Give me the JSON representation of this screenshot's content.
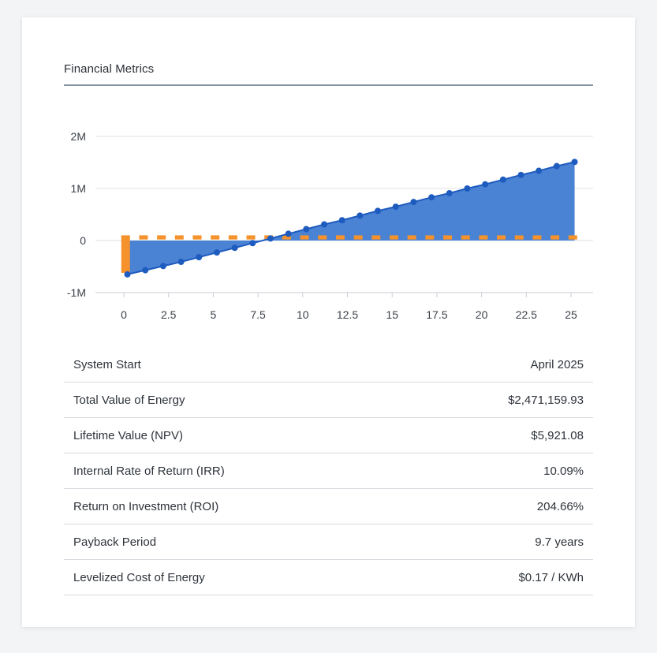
{
  "section": {
    "title": "Financial Metrics"
  },
  "colors": {
    "area_fill": "#4a82d4",
    "line": "#1d5bbf",
    "bar": "#f5922b",
    "grid": "#dde1e6"
  },
  "chart_data": {
    "type": "area",
    "title": "",
    "xlabel": "",
    "ylabel": "",
    "ylim": [
      -1000000,
      2000000
    ],
    "xlim": [
      0,
      25
    ],
    "y_ticks": [
      {
        "value": 2000000,
        "label": "2M"
      },
      {
        "value": 1000000,
        "label": "1M"
      },
      {
        "value": 0,
        "label": "0"
      },
      {
        "value": -1000000,
        "label": "-1M"
      }
    ],
    "x_ticks": [
      {
        "value": 0,
        "label": "0"
      },
      {
        "value": 2.5,
        "label": "2.5"
      },
      {
        "value": 5,
        "label": "5"
      },
      {
        "value": 7.5,
        "label": "7.5"
      },
      {
        "value": 10,
        "label": "10"
      },
      {
        "value": 12.5,
        "label": "12.5"
      },
      {
        "value": 15,
        "label": "15"
      },
      {
        "value": 17.5,
        "label": "17.5"
      },
      {
        "value": 20,
        "label": "20"
      },
      {
        "value": 22.5,
        "label": "22.5"
      },
      {
        "value": 25,
        "label": "25"
      }
    ],
    "grid": true,
    "legend": "none",
    "series": [
      {
        "kind": "area-line",
        "x": [
          0.2,
          1.2,
          2.2,
          3.2,
          4.2,
          5.2,
          6.2,
          7.2,
          8.2,
          9.2,
          10.2,
          11.2,
          12.2,
          13.2,
          14.2,
          15.2,
          16.2,
          17.2,
          18.2,
          19.2,
          20.2,
          21.2,
          22.2,
          23.2,
          24.2,
          25.2
        ],
        "values": [
          -650000,
          -570000,
          -490000,
          -410000,
          -320000,
          -230000,
          -140000,
          -50000,
          40000,
          130000,
          220000,
          310000,
          390000,
          480000,
          570000,
          650000,
          740000,
          830000,
          910000,
          1000000,
          1080000,
          1170000,
          1260000,
          1340000,
          1430000,
          1510000
        ]
      },
      {
        "kind": "bar",
        "x": [
          0.1,
          1.1,
          2.1,
          3.1,
          4.1,
          5.1,
          6.1,
          7.1,
          8.1,
          9.1,
          10.1,
          11.1,
          12.1,
          13.1,
          14.1,
          15.1,
          16.1,
          17.1,
          18.1,
          19.1,
          20.1,
          21.1,
          22.1,
          23.1,
          24.1,
          25.1
        ],
        "values": [
          -620000,
          80000,
          80000,
          80000,
          80000,
          80000,
          80000,
          80000,
          80000,
          80000,
          80000,
          80000,
          80000,
          80000,
          80000,
          80000,
          80000,
          80000,
          80000,
          80000,
          80000,
          80000,
          80000,
          80000,
          80000,
          80000
        ],
        "tops": [
          100000,
          100000,
          100000,
          100000,
          100000,
          100000,
          100000,
          100000,
          100000,
          100000,
          100000,
          100000,
          100000,
          100000,
          100000,
          100000,
          100000,
          100000,
          100000,
          100000,
          100000,
          100000,
          100000,
          100000,
          100000,
          100000
        ]
      }
    ]
  },
  "metrics": [
    {
      "label": "System Start",
      "value": "April 2025"
    },
    {
      "label": "Total Value of Energy",
      "value": "$2,471,159.93"
    },
    {
      "label": "Lifetime Value (NPV)",
      "value": "$5,921.08"
    },
    {
      "label": "Internal Rate of Return (IRR)",
      "value": "10.09%"
    },
    {
      "label": "Return on Investment (ROI)",
      "value": "204.66%"
    },
    {
      "label": "Payback Period",
      "value": "9.7 years"
    },
    {
      "label": "Levelized Cost of Energy",
      "value": "$0.17 / KWh"
    }
  ]
}
